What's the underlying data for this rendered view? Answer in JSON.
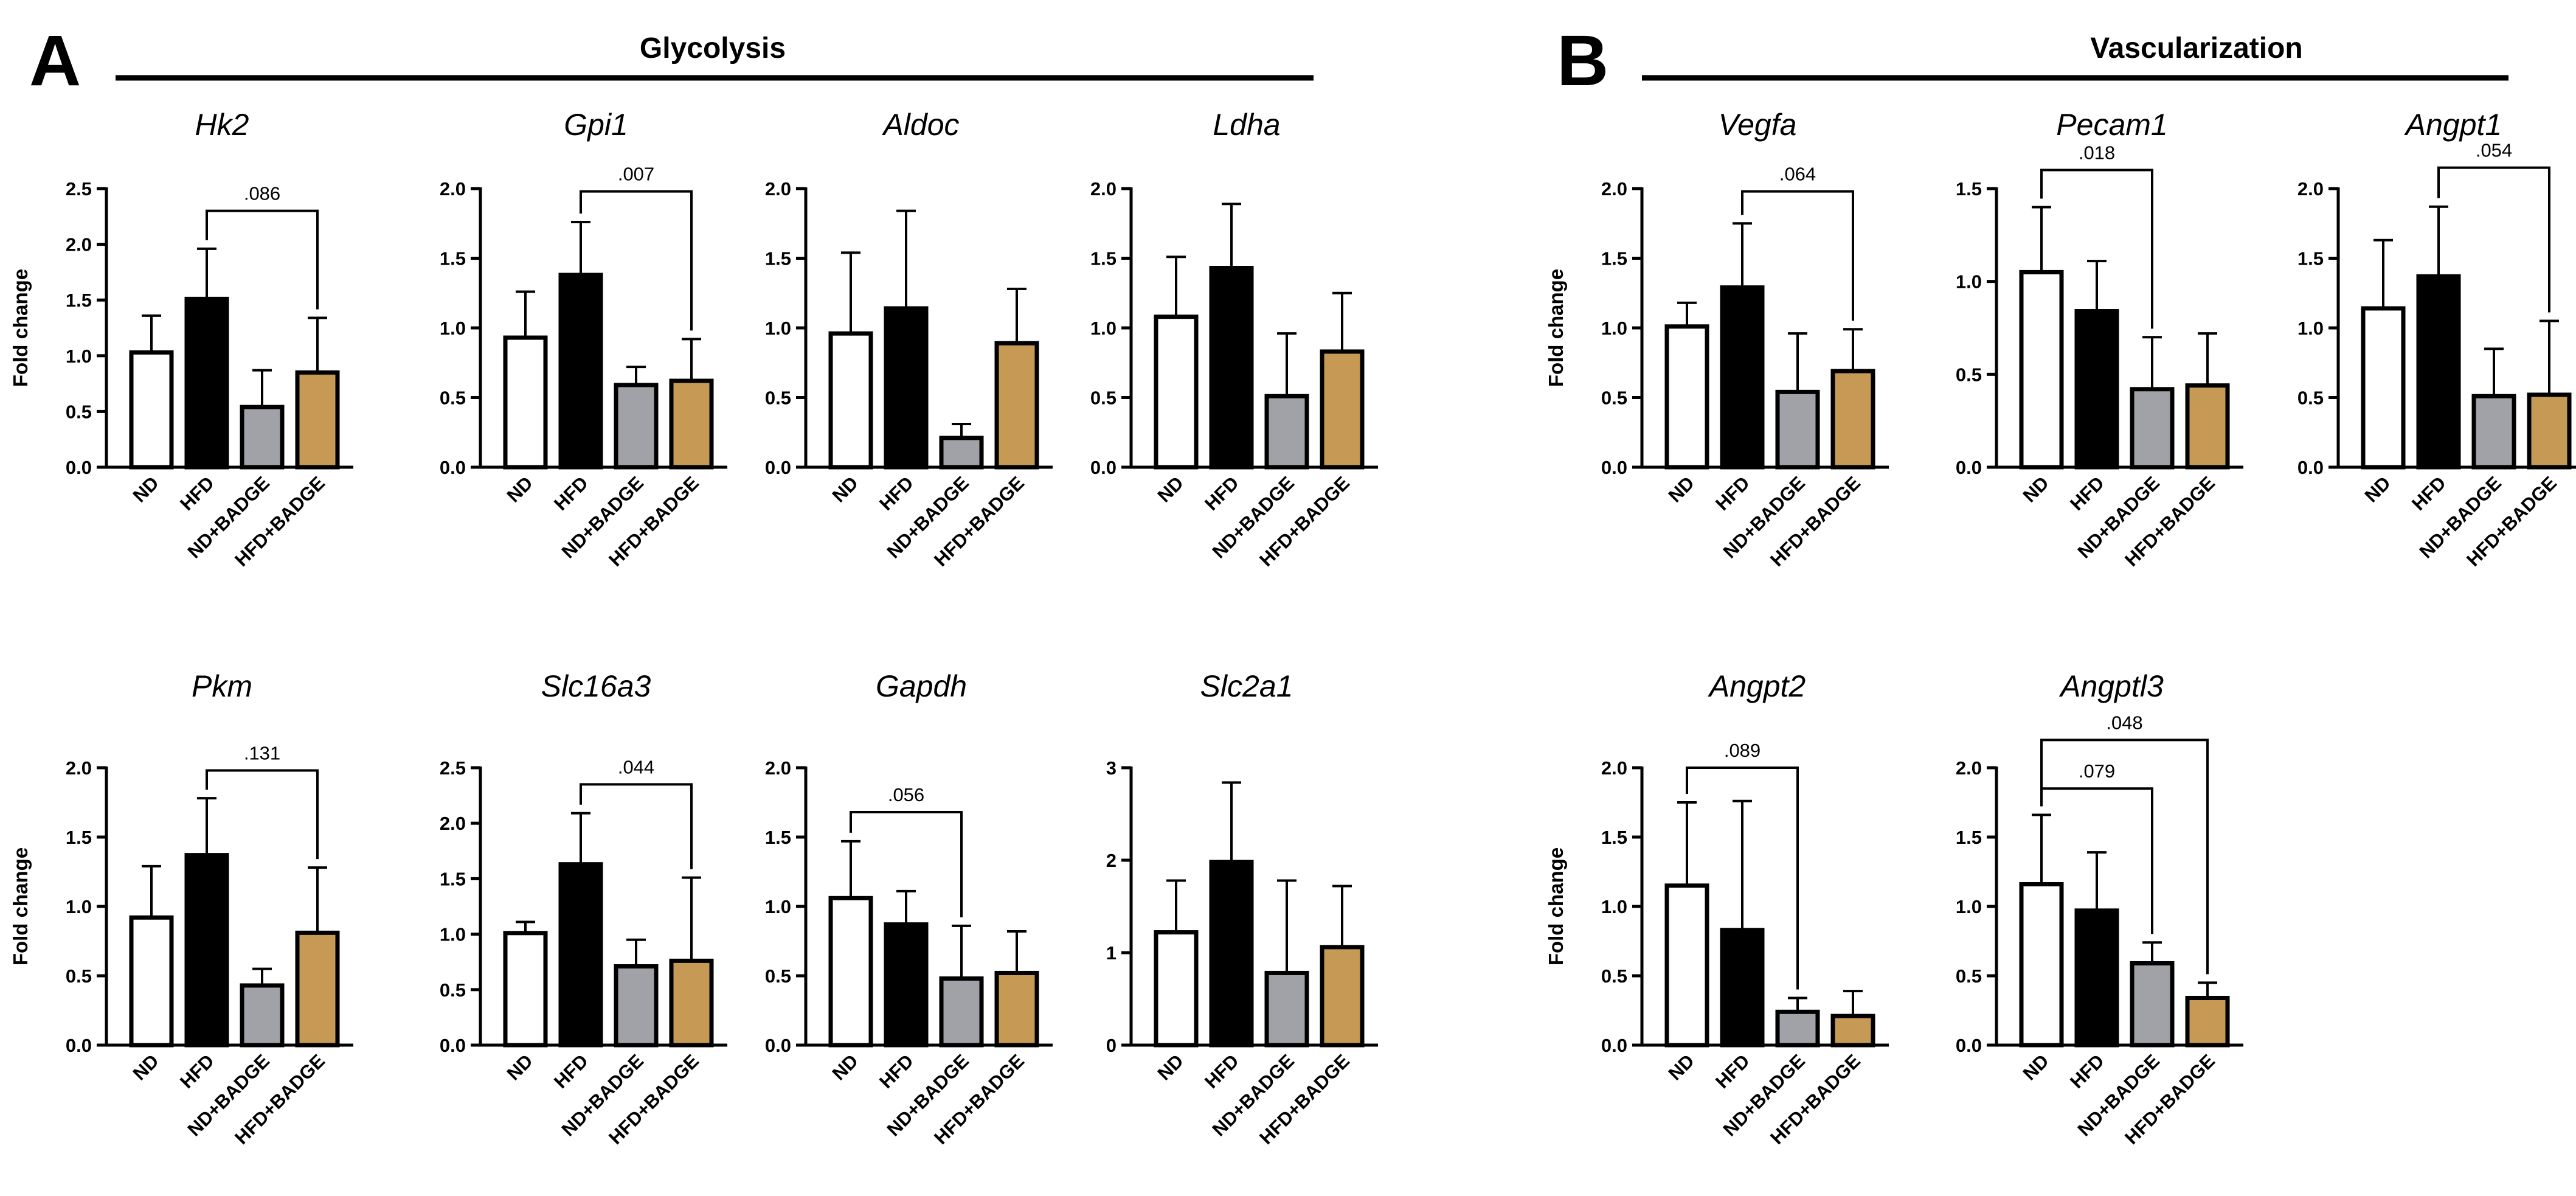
{
  "panels": [
    {
      "letter": "A",
      "title": "Glycolysis"
    },
    {
      "letter": "B",
      "title": "Vascularization"
    }
  ],
  "colors": {
    "ND": "#ffffff",
    "HFD": "#000000",
    "ND+BADGE": "#a1a1a8",
    "HFD+BADGE": "#c69a55",
    "outline": "#000000"
  },
  "chart_data": [
    {
      "type": "bar",
      "panel": "A",
      "title": "Hk2",
      "ylabel": "Fold change",
      "ylim": [
        0,
        2.5
      ],
      "yticks": [
        "0.0",
        "0.5",
        "1.0",
        "1.5",
        "2.0",
        "2.5"
      ],
      "categories": [
        "ND",
        "HFD",
        "ND+BADGE",
        "HFD+BADGE"
      ],
      "values": [
        1.03,
        1.51,
        0.54,
        0.85
      ],
      "errors": [
        0.33,
        0.45,
        0.33,
        0.49
      ],
      "significance": [
        {
          "from": 1,
          "to": 3,
          "label": ".086",
          "y": 2.3
        }
      ]
    },
    {
      "type": "bar",
      "panel": "A",
      "title": "Gpi1",
      "ylabel": "",
      "ylim": [
        0,
        2.0
      ],
      "yticks": [
        "0.0",
        "0.5",
        "1.0",
        "1.5",
        "2.0"
      ],
      "categories": [
        "ND",
        "HFD",
        "ND+BADGE",
        "HFD+BADGE"
      ],
      "values": [
        0.93,
        1.38,
        0.59,
        0.62
      ],
      "errors": [
        0.33,
        0.38,
        0.13,
        0.3
      ],
      "significance": [
        {
          "from": 1,
          "to": 3,
          "label": ".007",
          "y": 1.98
        }
      ]
    },
    {
      "type": "bar",
      "panel": "A",
      "title": "Aldoc",
      "ylabel": "",
      "ylim": [
        0,
        2.0
      ],
      "yticks": [
        "0.0",
        "0.5",
        "1.0",
        "1.5",
        "2.0"
      ],
      "categories": [
        "ND",
        "HFD",
        "ND+BADGE",
        "HFD+BADGE"
      ],
      "values": [
        0.96,
        1.14,
        0.21,
        0.89
      ],
      "errors": [
        0.58,
        0.7,
        0.1,
        0.39
      ],
      "significance": []
    },
    {
      "type": "bar",
      "panel": "A",
      "title": "Ldha",
      "ylabel": "",
      "ylim": [
        0,
        2.0
      ],
      "yticks": [
        "0.0",
        "0.5",
        "1.0",
        "1.5",
        "2.0"
      ],
      "categories": [
        "ND",
        "HFD",
        "ND+BADGE",
        "HFD+BADGE"
      ],
      "values": [
        1.08,
        1.43,
        0.51,
        0.83
      ],
      "errors": [
        0.43,
        0.46,
        0.45,
        0.42
      ],
      "significance": []
    },
    {
      "type": "bar",
      "panel": "A",
      "title": "Pkm",
      "ylabel": "Fold change",
      "ylim": [
        0,
        2.0
      ],
      "yticks": [
        "0.0",
        "0.5",
        "1.0",
        "1.5",
        "2.0"
      ],
      "categories": [
        "ND",
        "HFD",
        "ND+BADGE",
        "HFD+BADGE"
      ],
      "values": [
        0.92,
        1.37,
        0.43,
        0.81
      ],
      "errors": [
        0.37,
        0.41,
        0.12,
        0.47
      ],
      "significance": [
        {
          "from": 1,
          "to": 3,
          "label": ".131",
          "y": 1.98
        }
      ]
    },
    {
      "type": "bar",
      "panel": "A",
      "title": "Slc16a3",
      "ylabel": "",
      "ylim": [
        0,
        2.5
      ],
      "yticks": [
        "0.0",
        "0.5",
        "1.0",
        "1.5",
        "2.0",
        "2.5"
      ],
      "categories": [
        "ND",
        "HFD",
        "ND+BADGE",
        "HFD+BADGE"
      ],
      "values": [
        1.01,
        1.63,
        0.71,
        0.76
      ],
      "errors": [
        0.1,
        0.46,
        0.24,
        0.75
      ],
      "significance": [
        {
          "from": 1,
          "to": 3,
          "label": ".044",
          "y": 2.35
        }
      ]
    },
    {
      "type": "bar",
      "panel": "A",
      "title": "Gapdh",
      "ylabel": "",
      "ylim": [
        0,
        2.0
      ],
      "yticks": [
        "0.0",
        "0.5",
        "1.0",
        "1.5",
        "2.0"
      ],
      "categories": [
        "ND",
        "HFD",
        "ND+BADGE",
        "HFD+BADGE"
      ],
      "values": [
        1.06,
        0.87,
        0.48,
        0.52
      ],
      "errors": [
        0.41,
        0.24,
        0.38,
        0.3
      ],
      "significance": [
        {
          "from": 0,
          "to": 2,
          "label": ".056",
          "y": 1.68
        }
      ]
    },
    {
      "type": "bar",
      "panel": "A",
      "title": "Slc2a1",
      "ylabel": "",
      "ylim": [
        0,
        3.0
      ],
      "yticks": [
        "0",
        "1",
        "2",
        "3"
      ],
      "categories": [
        "ND",
        "HFD",
        "ND+BADGE",
        "HFD+BADGE"
      ],
      "values": [
        1.22,
        1.98,
        0.78,
        1.06
      ],
      "errors": [
        0.56,
        0.86,
        1.0,
        0.66
      ],
      "significance": []
    },
    {
      "type": "bar",
      "panel": "B",
      "title": "Vegfa",
      "ylabel": "Fold change",
      "ylim": [
        0,
        2.0
      ],
      "yticks": [
        "0.0",
        "0.5",
        "1.0",
        "1.5",
        "2.0"
      ],
      "categories": [
        "ND",
        "HFD",
        "ND+BADGE",
        "HFD+BADGE"
      ],
      "values": [
        1.01,
        1.29,
        0.54,
        0.69
      ],
      "errors": [
        0.17,
        0.46,
        0.42,
        0.3
      ],
      "significance": [
        {
          "from": 1,
          "to": 3,
          "label": ".064",
          "y": 1.98
        }
      ]
    },
    {
      "type": "bar",
      "panel": "B",
      "title": "Pecam1",
      "ylabel": "",
      "ylim": [
        0,
        1.5
      ],
      "yticks": [
        "0.0",
        "0.5",
        "1.0",
        "1.5"
      ],
      "categories": [
        "ND",
        "HFD",
        "ND+BADGE",
        "HFD+BADGE"
      ],
      "values": [
        1.05,
        0.84,
        0.42,
        0.44
      ],
      "errors": [
        0.35,
        0.27,
        0.28,
        0.28
      ],
      "significance": [
        {
          "from": 0,
          "to": 2,
          "label": ".018",
          "y": 1.6
        }
      ]
    },
    {
      "type": "bar",
      "panel": "B",
      "title": "Angpt1",
      "ylabel": "",
      "ylim": [
        0,
        2.0
      ],
      "yticks": [
        "0.0",
        "0.5",
        "1.0",
        "1.5",
        "2.0"
      ],
      "categories": [
        "ND",
        "HFD",
        "ND+BADGE",
        "HFD+BADGE"
      ],
      "values": [
        1.14,
        1.37,
        0.51,
        0.52
      ],
      "errors": [
        0.49,
        0.5,
        0.34,
        0.53
      ],
      "significance": [
        {
          "from": 1,
          "to": 3,
          "label": ".054",
          "y": 2.15
        }
      ]
    },
    {
      "type": "bar",
      "panel": "B",
      "title": "Angpt2",
      "ylabel": "Fold change",
      "ylim": [
        0,
        2.0
      ],
      "yticks": [
        "0.0",
        "0.5",
        "1.0",
        "1.5",
        "2.0"
      ],
      "categories": [
        "ND",
        "HFD",
        "ND+BADGE",
        "HFD+BADGE"
      ],
      "values": [
        1.15,
        0.83,
        0.24,
        0.21
      ],
      "errors": [
        0.6,
        0.93,
        0.1,
        0.18
      ],
      "significance": [
        {
          "from": 0,
          "to": 2,
          "label": ".089",
          "y": 2.0
        }
      ]
    },
    {
      "type": "bar",
      "panel": "B",
      "title": "Angptl3",
      "ylabel": "",
      "ylim": [
        0,
        2.0
      ],
      "yticks": [
        "0.0",
        "0.5",
        "1.0",
        "1.5",
        "2.0"
      ],
      "categories": [
        "ND",
        "HFD",
        "ND+BADGE",
        "HFD+BADGE"
      ],
      "values": [
        1.16,
        0.97,
        0.59,
        0.34
      ],
      "errors": [
        0.5,
        0.42,
        0.15,
        0.11
      ],
      "significance": [
        {
          "from": 0,
          "to": 2,
          "label": ".079",
          "y": 1.85
        },
        {
          "from": 0,
          "to": 3,
          "label": ".048",
          "y": 2.2
        }
      ]
    }
  ]
}
